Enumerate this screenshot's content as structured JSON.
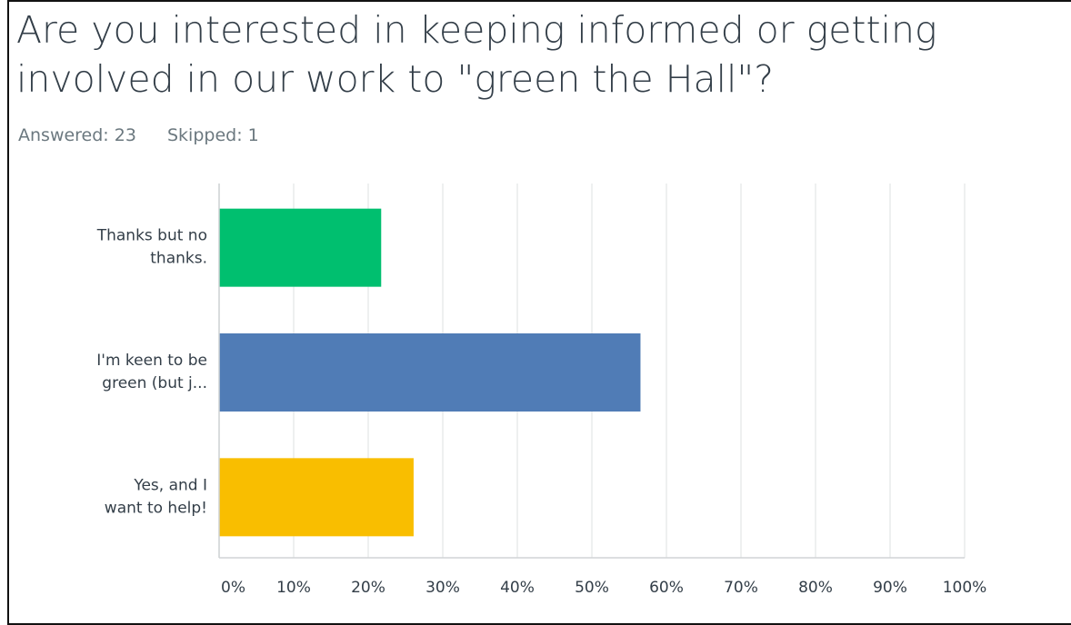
{
  "question": {
    "title": "Are you interested in keeping informed or getting involved in our work to \"green the Hall\"?",
    "answered": "Answered: 23",
    "skipped": "Skipped: 1"
  },
  "chart_data": {
    "type": "bar",
    "orientation": "horizontal",
    "categories": [
      [
        "Thanks but no",
        "thanks."
      ],
      [
        "I'm keen to be",
        "green (but j..."
      ],
      [
        "Yes, and I",
        "want to help!"
      ]
    ],
    "values": [
      21.74,
      56.52,
      26.09
    ],
    "colors": [
      "#00bf6f",
      "#507cb6",
      "#f9be00"
    ],
    "xlim": [
      0,
      100
    ],
    "x_ticks": [
      "0%",
      "10%",
      "20%",
      "30%",
      "40%",
      "50%",
      "60%",
      "70%",
      "80%",
      "90%",
      "100%"
    ],
    "grid": true
  }
}
